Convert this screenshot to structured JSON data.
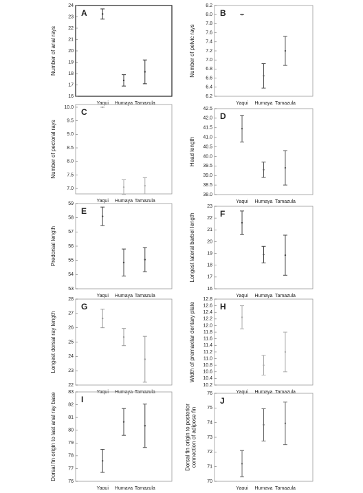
{
  "chart_data": [
    {
      "type": "errorbar",
      "title": "A",
      "ylabel": "Number of anal rays",
      "categories": [
        "Yaqui",
        "Humaya",
        "Tamazula"
      ],
      "values": [
        23.25,
        17.4,
        18.15
      ],
      "errors": [
        0.45,
        0.5,
        1.05
      ],
      "color": "#333333",
      "ylim": [
        16,
        24
      ],
      "yticks": [
        16,
        17,
        18,
        19,
        20,
        21,
        22,
        23,
        24
      ]
    },
    {
      "type": "errorbar",
      "title": "B",
      "ylabel": "Number of pelvic rays",
      "categories": [
        "Yaqui",
        "Humaya",
        "Tamazula"
      ],
      "values": [
        8,
        6.65,
        7.2
      ],
      "errors": [
        0,
        0.27,
        0.32
      ],
      "color": "#555555",
      "ylim": [
        6.2,
        8.2
      ],
      "yticks": [
        6.2,
        6.4,
        6.6,
        6.8,
        {
          "value": 7,
          "label": "7.0"
        },
        7.2,
        7.4,
        7.6,
        7.8,
        {
          "value": 8,
          "label": "8.0"
        },
        8.2
      ]
    },
    {
      "type": "errorbar",
      "title": "C",
      "ylabel": "Number of pectoral rays",
      "categories": [
        "Yaqui",
        "Humaya",
        "Tamazula"
      ],
      "values": [
        10,
        7.05,
        7.1
      ],
      "errors": [
        0,
        0.27,
        0.3
      ],
      "color": "#aaaaaa",
      "ylim": [
        6.8,
        10.1
      ],
      "yticks": [
        {
          "value": 7,
          "label": "7.0"
        },
        7.5,
        {
          "value": 8,
          "label": "8.0"
        },
        8.5,
        {
          "value": 9,
          "label": "9.0"
        },
        9.5,
        {
          "value": 10,
          "label": "10.0"
        }
      ]
    },
    {
      "type": "errorbar",
      "title": "D",
      "ylabel": "Head length",
      "categories": [
        "Yaqui",
        "Humaya",
        "Tamazula"
      ],
      "values": [
        41.45,
        39.3,
        39.4
      ],
      "errors": [
        0.7,
        0.4,
        0.9
      ],
      "color": "#555555",
      "ylim": [
        38,
        42.5
      ],
      "yticks": [
        {
          "value": 38,
          "label": "38.0"
        },
        38.5,
        {
          "value": 39,
          "label": "39.0"
        },
        39.5,
        {
          "value": 40,
          "label": "40.0"
        },
        40.5,
        {
          "value": 41,
          "label": "41.0"
        },
        41.5,
        {
          "value": 42,
          "label": "42.0"
        },
        42.5
      ]
    },
    {
      "type": "errorbar",
      "title": "E",
      "ylabel": "Predorsal length",
      "categories": [
        "Yaqui",
        "Humaya",
        "Tamazula"
      ],
      "values": [
        58.1,
        54.85,
        55.05
      ],
      "errors": [
        0.65,
        0.95,
        0.85
      ],
      "color": "#444444",
      "ylim": [
        53,
        59
      ],
      "yticks": [
        53,
        54,
        55,
        56,
        57,
        58,
        59
      ]
    },
    {
      "type": "errorbar",
      "title": "F",
      "ylabel": "Longest lateral barbel length",
      "categories": [
        "Yaqui",
        "Humaya",
        "Tamazula"
      ],
      "values": [
        21.6,
        18.9,
        18.85
      ],
      "errors": [
        1,
        0.7,
        1.7
      ],
      "color": "#444444",
      "ylim": [
        16,
        23
      ],
      "yticks": [
        16,
        17,
        18,
        19,
        20,
        21,
        22,
        23
      ]
    },
    {
      "type": "errorbar",
      "title": "G",
      "ylabel": "Longest dorsal ray length",
      "categories": [
        "Yaqui",
        "Humaya",
        "Tamazula"
      ],
      "values": [
        26.65,
        25.35,
        23.8
      ],
      "errors": [
        0.65,
        0.6,
        1.6
      ],
      "color": "#999999",
      "ylim": [
        22,
        28
      ],
      "yticks": [
        22,
        23,
        24,
        25,
        26,
        27,
        28
      ]
    },
    {
      "type": "errorbar",
      "title": "H",
      "ylabel": "Width of premaxilar dentary plate",
      "categories": [
        "Yaqui",
        "Humaya",
        "Tamazula"
      ],
      "values": [
        12.25,
        10.8,
        11.2
      ],
      "errors": [
        0.35,
        0.3,
        0.6
      ],
      "color": "#aaaaaa",
      "ylim": [
        10.2,
        12.8
      ],
      "yticks": [
        10.2,
        10.4,
        10.6,
        10.8,
        {
          "value": 11,
          "label": "11.0"
        },
        11.2,
        11.4,
        11.6,
        11.8,
        {
          "value": 12,
          "label": "12.0"
        },
        12.2,
        12.4,
        12.6,
        12.8
      ]
    },
    {
      "type": "errorbar",
      "title": "I",
      "ylabel": "Dorsal fin origin to last anal ray base",
      "categories": [
        "Yaqui",
        "Humaya",
        "Tamazula"
      ],
      "values": [
        77.6,
        80.65,
        80.35
      ],
      "errors": [
        0.9,
        1.05,
        1.7
      ],
      "color": "#444444",
      "ylim": [
        76,
        83
      ],
      "yticks": [
        76,
        77,
        78,
        79,
        80,
        81,
        82,
        83
      ]
    },
    {
      "type": "errorbar",
      "title": "J",
      "ylabel": [
        "Dorsal fin origin to posterior",
        "connection of adipose fin"
      ],
      "categories": [
        "Yaqui",
        "Humaya",
        "Tamazula"
      ],
      "values": [
        71.2,
        73.85,
        73.95
      ],
      "errors": [
        0.9,
        1.1,
        1.45
      ],
      "color": "#666666",
      "ylim": [
        70,
        76
      ],
      "yticks": [
        70,
        71,
        72,
        73,
        74,
        75,
        76
      ]
    }
  ]
}
